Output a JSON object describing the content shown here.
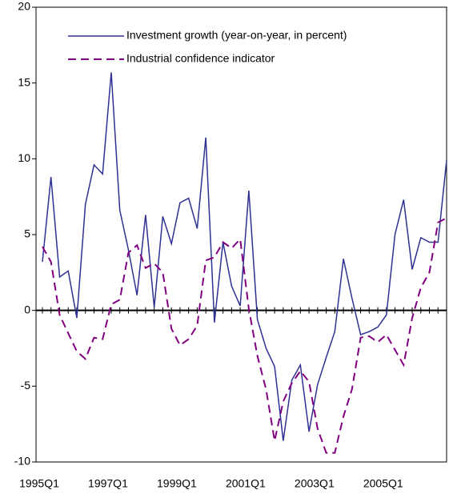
{
  "chart_data": {
    "type": "line",
    "categories": [
      "1995Q1",
      null,
      null,
      null,
      null,
      null,
      null,
      null,
      "1997Q1",
      null,
      null,
      null,
      null,
      null,
      null,
      null,
      "1999Q1",
      null,
      null,
      null,
      null,
      null,
      null,
      null,
      "2001Q1",
      null,
      null,
      null,
      null,
      null,
      null,
      null,
      "2003Q1",
      null,
      null,
      null,
      null,
      null,
      null,
      null,
      "2005Q1",
      null,
      null,
      null,
      null,
      null,
      null,
      null
    ],
    "series": [
      {
        "name": "Investment growth (year-on-year, in percent)",
        "color": "#2e3192",
        "dash": "solid",
        "values": [
          3.2,
          8.8,
          2.2,
          2.6,
          -0.5,
          7.0,
          9.6,
          9.0,
          15.7,
          6.6,
          4.0,
          1.0,
          6.3,
          0.2,
          6.2,
          4.4,
          7.1,
          7.4,
          5.4,
          11.4,
          -0.8,
          4.5,
          1.6,
          0.3,
          7.9,
          -0.6,
          -2.5,
          -3.7,
          -8.6,
          -4.6,
          -3.6,
          -8.0,
          -4.9,
          -3.1,
          -1.4,
          3.4,
          0.8,
          -1.6,
          -1.4,
          -1.1,
          -0.3,
          5.0,
          7.3,
          2.7,
          4.8,
          4.5,
          4.5,
          9.9
        ]
      },
      {
        "name": "Industrial confidence indicator",
        "color": "#800080",
        "dash": "dashed",
        "values": [
          4.2,
          3.2,
          -0.3,
          -1.5,
          -2.7,
          -3.2,
          -1.8,
          -1.9,
          0.4,
          0.7,
          3.8,
          4.3,
          2.8,
          3.1,
          2.5,
          -1.2,
          -2.3,
          -1.9,
          -1.0,
          3.3,
          3.5,
          4.5,
          4.1,
          4.7,
          0.1,
          -3.0,
          -5.2,
          -8.6,
          -6.0,
          -4.8,
          -4.0,
          -4.7,
          -7.8,
          -9.4,
          -9.4,
          -7.0,
          -5.2,
          -1.8,
          -1.7,
          -2.1,
          -1.6,
          -2.6,
          -3.6,
          -0.5,
          1.5,
          2.5,
          5.8,
          6.1
        ]
      }
    ],
    "ylim": [
      -10,
      20
    ],
    "yticks": [
      -10,
      -5,
      0,
      5,
      10,
      15,
      20
    ],
    "grid": false
  }
}
